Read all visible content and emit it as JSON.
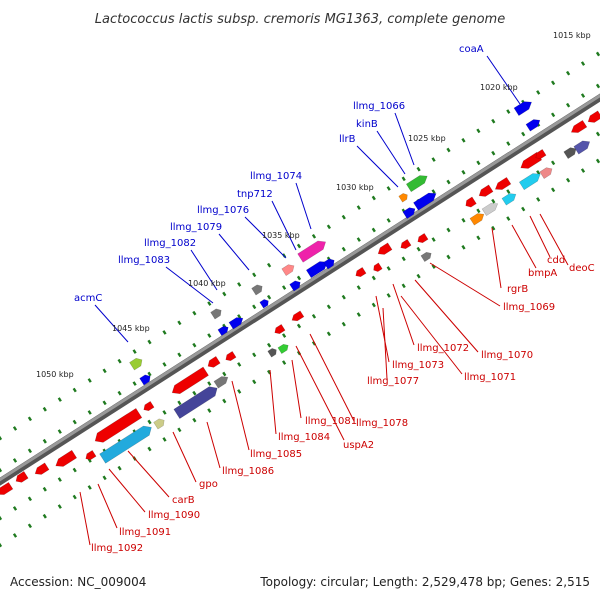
{
  "title": "Lactococcus lactis subsp. cremoris MG1363, complete genome",
  "footer": {
    "accession": "Accession: NC_009004",
    "summary": "Topology: circular; Length: 2,529,478 bp; Genes: 2,515"
  },
  "colors": {
    "backbone": "#888888",
    "upper_label": "#0000cc",
    "lower_label": "#cc0000",
    "tick_dot": "#1f7a1f",
    "forward_gene": "#0000ee",
    "reverse_gene": "#ee0000"
  },
  "scale_labels": [
    "1015 kbp",
    "1020 kbp",
    "1025 kbp",
    "1030 kbp",
    "1035 kbp",
    "1040 kbp",
    "1045 kbp",
    "1050 kbp"
  ],
  "upper_labels": [
    "coaA",
    "llmg_1066",
    "kinB",
    "llrB",
    "llmg_1074",
    "tnp712",
    "llmg_1076",
    "llmg_1079",
    "llmg_1082",
    "llmg_1083",
    "acmC"
  ],
  "lower_labels": [
    "deoC",
    "cdd",
    "bmpA",
    "rgrB",
    "llmg_1069",
    "llmg_1070",
    "llmg_1071",
    "llmg_1072",
    "llmg_1073",
    "llmg_1077",
    "llmg_1078",
    "uspA2",
    "llmg_1081",
    "llmg_1084",
    "llmg_1085",
    "llmg_1086",
    "gpo",
    "carB",
    "llmg_1090",
    "llmg_1091",
    "llmg_1092"
  ]
}
